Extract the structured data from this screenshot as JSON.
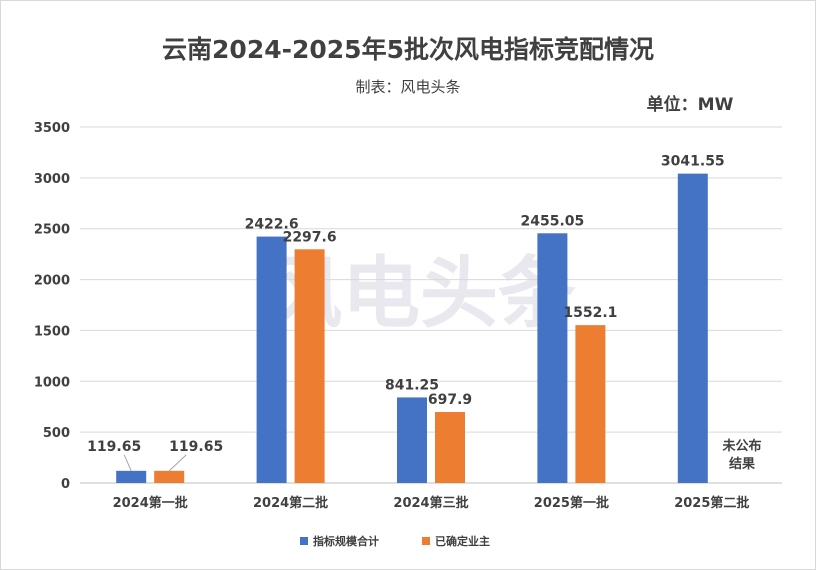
{
  "chart_data": {
    "type": "bar",
    "title": "云南2024-2025年5批次风电指标竞配情况",
    "subtitle": "制表：风电头条",
    "unit_label": "单位：MW",
    "watermark": "风电头条",
    "categories": [
      "2024第一批",
      "2024第二批",
      "2024第三批",
      "2025第一批",
      "2025第二批"
    ],
    "series": [
      {
        "name": "指标规模合计",
        "color": "#4472C4",
        "values": [
          119.65,
          2422.6,
          841.25,
          2455.05,
          3041.55
        ],
        "labels": [
          "119.65",
          "2422.6",
          "841.25",
          "2455.05",
          "3041.55"
        ]
      },
      {
        "name": "已确定业主",
        "color": "#ED7D31",
        "values": [
          119.65,
          2297.6,
          697.9,
          1552.1,
          null
        ],
        "labels": [
          "119.65",
          "2297.6",
          "697.9",
          "1552.1",
          ""
        ]
      }
    ],
    "annotation": {
      "category": "2025第二批",
      "lines": [
        "未公布",
        "结果"
      ]
    },
    "ylim": [
      0,
      3500
    ],
    "yticks": [
      "0",
      "500",
      "1000",
      "1500",
      "2000",
      "2500",
      "3000",
      "3500"
    ],
    "grid": true,
    "legend": "bottom"
  }
}
